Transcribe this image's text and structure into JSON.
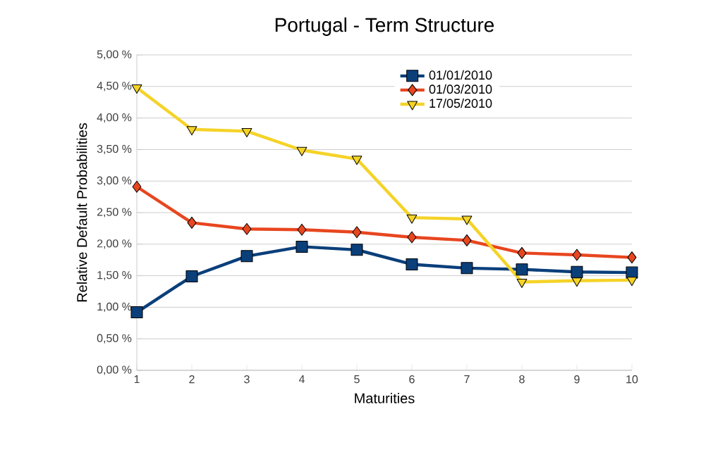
{
  "chart_data": {
    "type": "line",
    "title": "Portugal - Term Structure",
    "xlabel": "Maturities",
    "ylabel": "Relative Default Probabilities",
    "x": [
      1,
      2,
      3,
      4,
      5,
      6,
      7,
      8,
      9,
      10
    ],
    "xlim": [
      1,
      10
    ],
    "xticks": [
      1,
      2,
      3,
      4,
      5,
      6,
      7,
      8,
      9,
      10
    ],
    "ylim": [
      0,
      5
    ],
    "yticks": [
      {
        "value": 0,
        "label": "0,00 %"
      },
      {
        "value": 0.5,
        "label": "0,50 %"
      },
      {
        "value": 1,
        "label": "1,00 %"
      },
      {
        "value": 1.5,
        "label": "1,50 %"
      },
      {
        "value": 2,
        "label": "2,00 %"
      },
      {
        "value": 2.5,
        "label": "2,50 %"
      },
      {
        "value": 3,
        "label": "3,00 %"
      },
      {
        "value": 3.5,
        "label": "3,50 %"
      },
      {
        "value": 4,
        "label": "4,00 %"
      },
      {
        "value": 4.5,
        "label": "4,50 %"
      },
      {
        "value": 5,
        "label": "5,00 %"
      }
    ],
    "grid": "y",
    "legend": "top right",
    "line_style": "solid",
    "series": [
      {
        "name": "01/01/2010",
        "color": "#0a3f7a",
        "marker": "square",
        "values": [
          0.92,
          1.49,
          1.81,
          1.96,
          1.91,
          1.68,
          1.62,
          1.6,
          1.56,
          1.55
        ]
      },
      {
        "name": "01/03/2010",
        "color": "#e8461f",
        "marker": "diamond",
        "values": [
          2.91,
          2.34,
          2.24,
          2.23,
          2.19,
          2.11,
          2.06,
          1.86,
          1.83,
          1.79
        ]
      },
      {
        "name": "17/05/2010",
        "color": "#f5d327",
        "marker": "triangle",
        "values": [
          4.48,
          3.82,
          3.79,
          3.49,
          3.35,
          2.42,
          2.4,
          1.4,
          1.42,
          1.43
        ]
      }
    ]
  }
}
